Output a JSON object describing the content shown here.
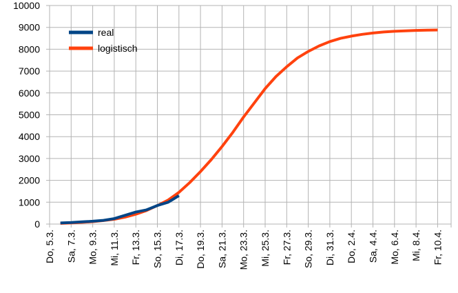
{
  "chart_data": {
    "type": "line",
    "categories": [
      "Do, 5.3.",
      null,
      "Sa, 7.3.",
      null,
      "Mo, 9.3.",
      null,
      "Mi, 11.3.",
      null,
      "Fr, 13.3.",
      null,
      "So, 15.3.",
      null,
      "Di, 17.3.",
      null,
      "Do, 19.3.",
      null,
      "Sa, 21.3.",
      null,
      "Mo, 23.3.",
      null,
      "Mi, 25.3.",
      null,
      "Fr, 27.3.",
      null,
      "So, 29.3.",
      null,
      "Di, 31.3.",
      null,
      "Do, 2.4.",
      null,
      "Sa, 4.4.",
      null,
      "Mo, 6.4.",
      null,
      "Mi, 8.4.",
      null,
      "Fr, 10.4."
    ],
    "series": [
      {
        "name": "real",
        "color": "#004586",
        "values": [
          null,
          50,
          70,
          100,
          130,
          170,
          250,
          400,
          550,
          650,
          850,
          1000,
          1300,
          null,
          null,
          null,
          null,
          null,
          null,
          null,
          null,
          null,
          null,
          null,
          null,
          null,
          null,
          null,
          null,
          null,
          null,
          null,
          null,
          null,
          null,
          null,
          null
        ]
      },
      {
        "name": "logistisch",
        "color": "#ff420e",
        "values": [
          null,
          30,
          50,
          80,
          110,
          160,
          220,
          320,
          450,
          620,
          850,
          1100,
          1450,
          1900,
          2400,
          2950,
          3550,
          4200,
          4900,
          5550,
          6200,
          6750,
          7200,
          7600,
          7900,
          8150,
          8350,
          8500,
          8600,
          8680,
          8740,
          8790,
          8820,
          8840,
          8860,
          8870,
          8880
        ]
      }
    ],
    "ylim": [
      0,
      10000
    ],
    "yticks": [
      0,
      1000,
      2000,
      3000,
      4000,
      5000,
      6000,
      7000,
      8000,
      9000,
      10000
    ],
    "grid": true,
    "legend": "upper left"
  }
}
